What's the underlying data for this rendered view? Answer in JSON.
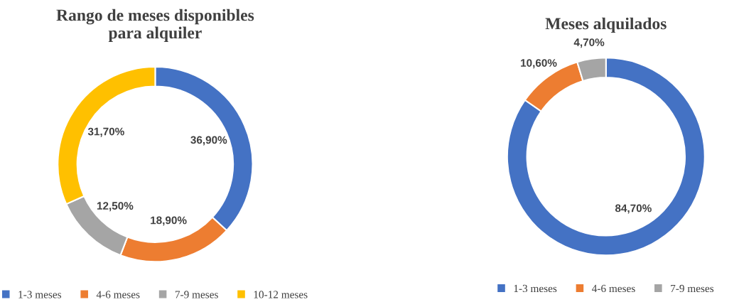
{
  "chart_data": [
    {
      "type": "donut",
      "title": "Rango de meses disponibles\npara alquiler",
      "categories": [
        "1-3 meses",
        "4-6 meses",
        "7-9 meses",
        "10-12 meses"
      ],
      "values": [
        36.9,
        18.9,
        12.5,
        31.7
      ],
      "value_labels": [
        "36,90%",
        "18,90%",
        "12,50%",
        "31,70%"
      ],
      "colors": [
        "#4472c4",
        "#ed7d31",
        "#a5a5a5",
        "#ffc000"
      ],
      "legend": "bottom"
    },
    {
      "type": "donut",
      "title": "Meses alquilados",
      "categories": [
        "1-3 meses",
        "4-6 meses",
        "7-9 meses"
      ],
      "values": [
        84.7,
        10.6,
        4.7
      ],
      "value_labels": [
        "84,70%",
        "10,60%",
        "4,70%"
      ],
      "colors": [
        "#4472c4",
        "#ed7d31",
        "#a5a5a5"
      ],
      "legend": "bottom"
    }
  ]
}
